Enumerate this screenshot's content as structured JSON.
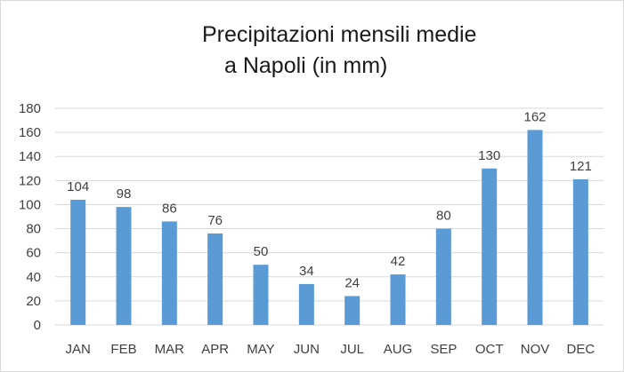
{
  "chart_data": {
    "type": "bar",
    "title_lines": [
      "Precipitazioni mensili medie",
      "a Napoli (in mm)"
    ],
    "categories": [
      "JAN",
      "FEB",
      "MAR",
      "APR",
      "MAY",
      "JUN",
      "JUL",
      "AUG",
      "SEP",
      "OCT",
      "NOV",
      "DEC"
    ],
    "values": [
      104,
      98,
      86,
      76,
      50,
      34,
      24,
      42,
      80,
      130,
      162,
      121
    ],
    "ylim": [
      0,
      180
    ],
    "yticks": [
      0,
      20,
      40,
      60,
      80,
      100,
      120,
      140,
      160,
      180
    ],
    "grid": true,
    "data_labels": true,
    "bar_color": "#5b9bd5",
    "grid_color": "#d9d9d9",
    "text_color": "#404040"
  }
}
